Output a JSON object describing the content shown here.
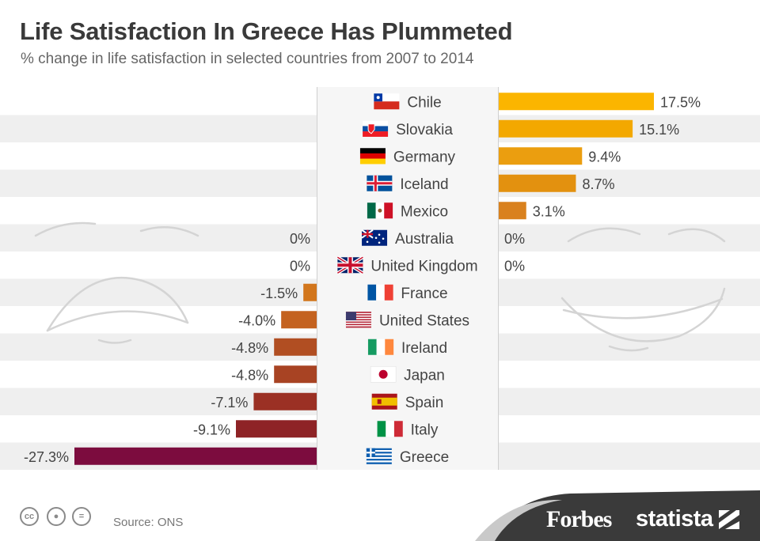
{
  "header": {
    "title": "Life Satisfaction In Greece Has Plummeted",
    "subtitle": "% change in life satisfaction in selected countries from 2007 to 2014"
  },
  "footer": {
    "source": "Source: ONS",
    "logos": [
      "Forbes",
      "statista"
    ],
    "license_icons": [
      "cc-icon",
      "attribution-icon",
      "no-derivatives-icon"
    ]
  },
  "colors": {
    "positive": [
      "#FBB500",
      "#F3A800",
      "#EB9E0F",
      "#E3910F",
      "#D9811E"
    ],
    "negative": [
      "#D2761C",
      "#C4621F",
      "#B14E22",
      "#A84323",
      "#9B3024",
      "#8E2326",
      "#7C0C3E"
    ],
    "row_band": "#EFEFEF",
    "label_column": "#F5F5F5"
  },
  "chart_data": {
    "type": "bar",
    "orientation": "horizontal",
    "categories": [
      "Chile",
      "Slovakia",
      "Germany",
      "Iceland",
      "Mexico",
      "Australia",
      "United Kingdom",
      "France",
      "United States",
      "Ireland",
      "Japan",
      "Spain",
      "Italy",
      "Greece"
    ],
    "values": [
      17.5,
      15.1,
      9.4,
      8.7,
      3.1,
      0,
      0,
      -1.5,
      -4.0,
      -4.8,
      -4.8,
      -7.1,
      -9.1,
      -27.3
    ],
    "value_labels": [
      "17.5%",
      "15.1%",
      "9.4%",
      "8.7%",
      "3.1%",
      "0%",
      "0%",
      "-1.5%",
      "-4.0%",
      "-4.8%",
      "-4.8%",
      "-7.1%",
      "-9.1%",
      "-27.3%"
    ],
    "flags": [
      "chile-flag-icon",
      "slovakia-flag-icon",
      "germany-flag-icon",
      "iceland-flag-icon",
      "mexico-flag-icon",
      "australia-flag-icon",
      "uk-flag-icon",
      "france-flag-icon",
      "usa-flag-icon",
      "ireland-flag-icon",
      "japan-flag-icon",
      "spain-flag-icon",
      "italy-flag-icon",
      "greece-flag-icon"
    ],
    "unit": "%",
    "grid": false,
    "legend": "none"
  }
}
